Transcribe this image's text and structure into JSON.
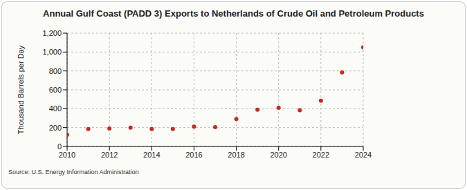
{
  "chart_data": {
    "type": "scatter",
    "title": "Annual Gulf Coast (PADD 3) Exports to Netherlands of Crude Oil and Petroleum Products",
    "y_label": "Thousand Barrels per Day",
    "source": "Source: U.S. Energy Information Administration",
    "x": [
      2010,
      2011,
      2012,
      2013,
      2014,
      2015,
      2016,
      2017,
      2018,
      2019,
      2020,
      2021,
      2022,
      2023,
      2024
    ],
    "values": [
      125,
      185,
      190,
      200,
      185,
      185,
      210,
      205,
      290,
      390,
      410,
      385,
      485,
      785,
      1050
    ],
    "color": "#c8281e",
    "marker": "circle",
    "xlim": [
      2010,
      2024
    ],
    "xticks": [
      2010,
      2012,
      2014,
      2016,
      2018,
      2020,
      2022,
      2024
    ],
    "ylim": [
      0,
      1200
    ],
    "yticks": [
      0,
      200,
      400,
      600,
      800,
      {
        "value": 1000,
        "label": "1,000"
      },
      {
        "value": 1200,
        "label": "1,200"
      }
    ],
    "grid": true
  }
}
